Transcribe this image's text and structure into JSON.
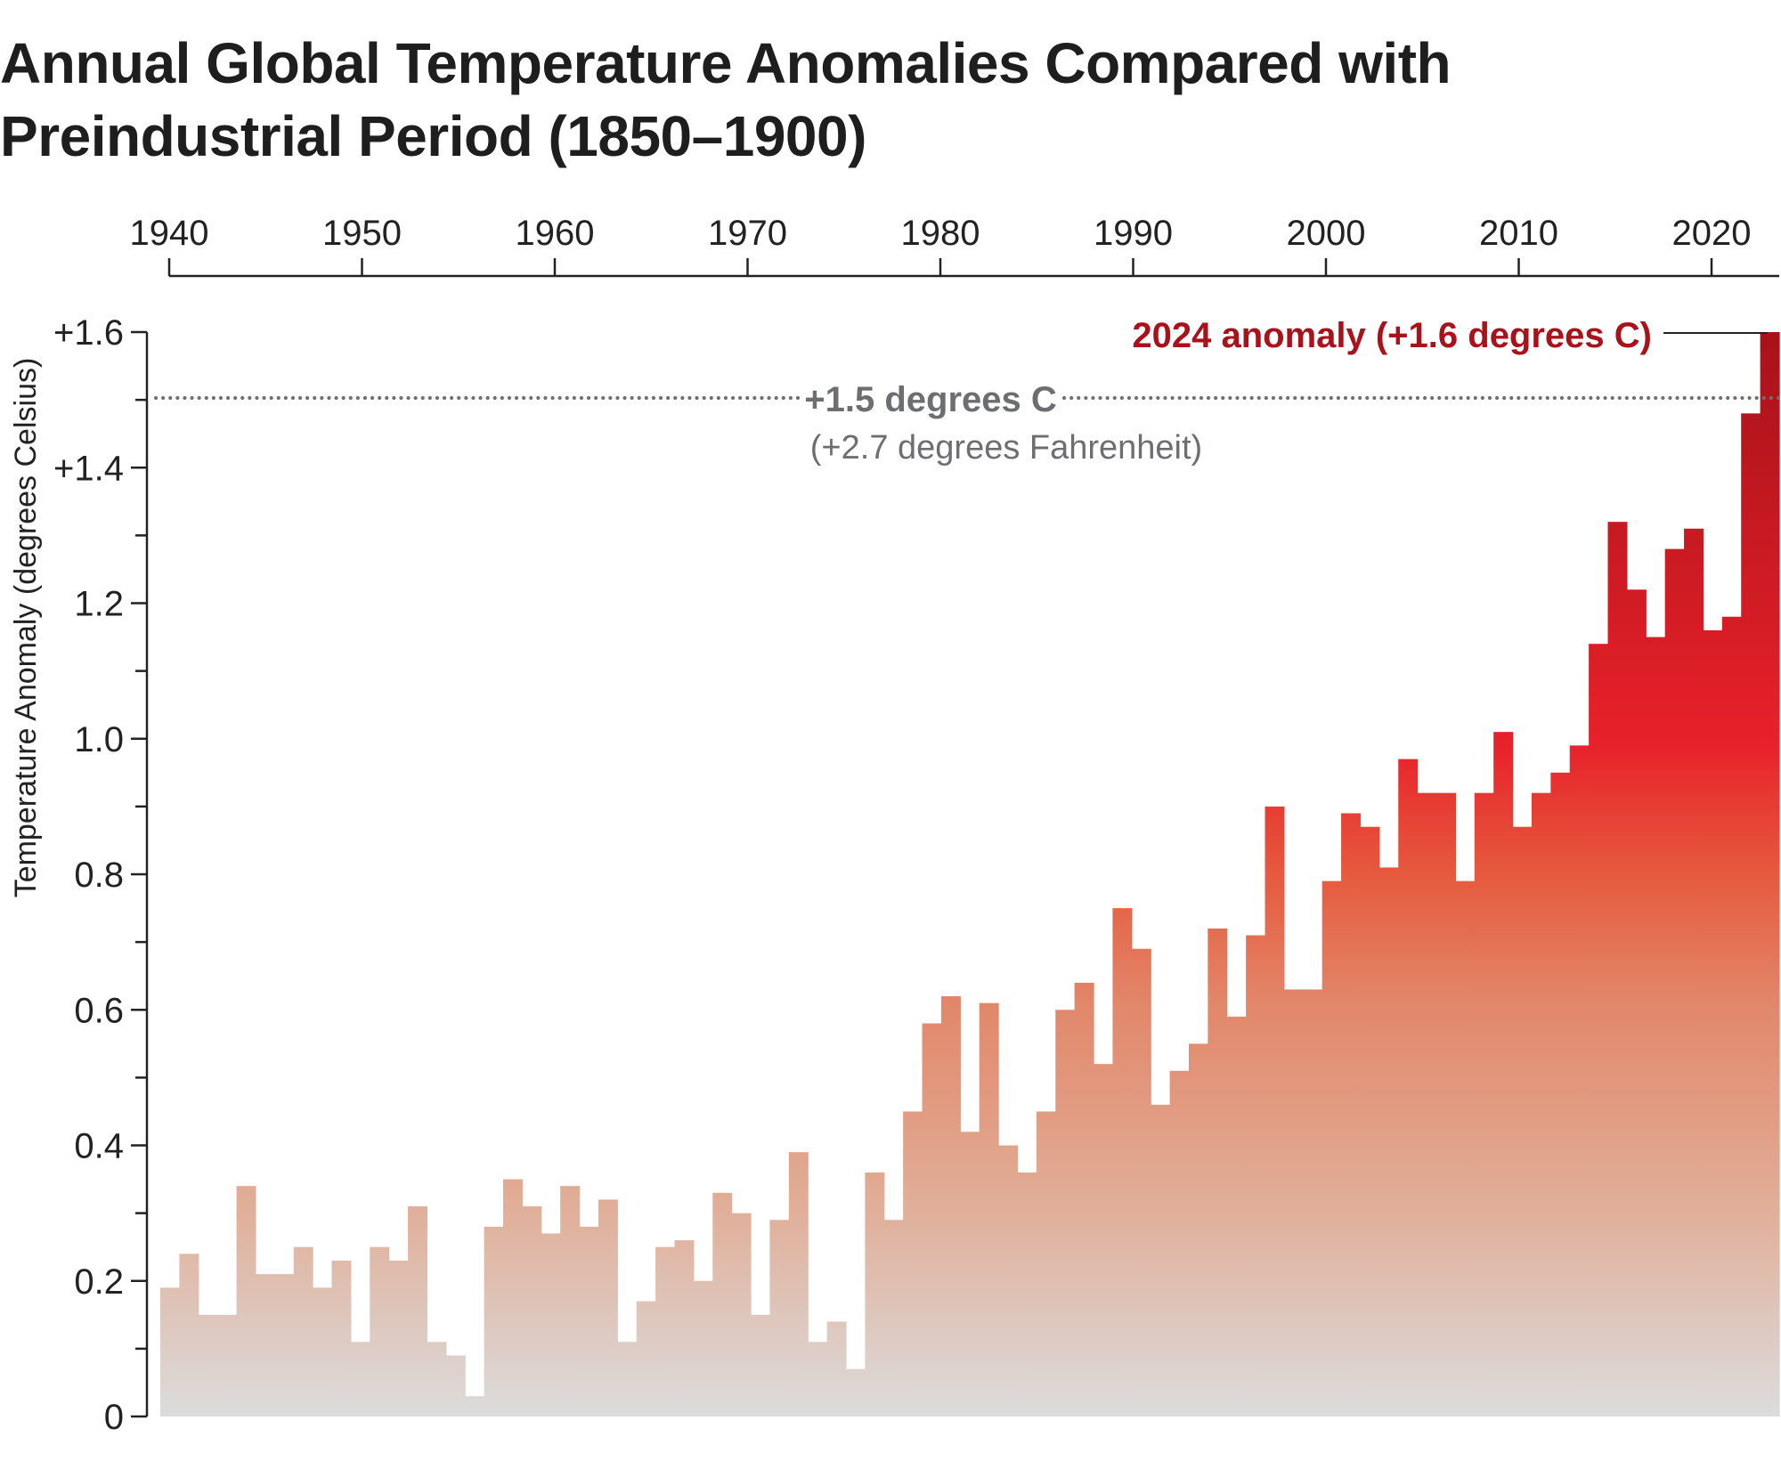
{
  "chart_data": {
    "type": "bar",
    "title": "Annual Global Temperature Anomalies Compared with Preindustrial Period (1850–1900)",
    "ylabel": "Temperature Anomaly (degrees Celsius)",
    "xlabel": "",
    "xlim": [
      1940,
      2024
    ],
    "ylim": [
      0,
      1.6
    ],
    "x_ticks": [
      "1940",
      "1950",
      "1960",
      "1970",
      "1980",
      "1990",
      "2000",
      "2010",
      "2020"
    ],
    "y_ticks": [
      {
        "value": 0,
        "label": "0"
      },
      {
        "value": 0.2,
        "label": "0.2"
      },
      {
        "value": 0.4,
        "label": "0.4"
      },
      {
        "value": 0.6,
        "label": "0.6"
      },
      {
        "value": 0.8,
        "label": "0.8"
      },
      {
        "value": 1.0,
        "label": "1.0"
      },
      {
        "value": 1.2,
        "label": "1.2"
      },
      {
        "value": 1.4,
        "label": "+1.4"
      },
      {
        "value": 1.6,
        "label": "+1.6"
      }
    ],
    "grid": false,
    "x_axis_position": "top",
    "years": [
      1940,
      1941,
      1942,
      1943,
      1944,
      1945,
      1946,
      1947,
      1948,
      1949,
      1950,
      1951,
      1952,
      1953,
      1954,
      1955,
      1956,
      1957,
      1958,
      1959,
      1960,
      1961,
      1962,
      1963,
      1964,
      1965,
      1966,
      1967,
      1968,
      1969,
      1970,
      1971,
      1972,
      1973,
      1974,
      1975,
      1976,
      1977,
      1978,
      1979,
      1980,
      1981,
      1982,
      1983,
      1984,
      1985,
      1986,
      1987,
      1988,
      1989,
      1990,
      1991,
      1992,
      1993,
      1994,
      1995,
      1996,
      1997,
      1998,
      1999,
      2000,
      2001,
      2002,
      2003,
      2004,
      2005,
      2006,
      2007,
      2008,
      2009,
      2010,
      2011,
      2012,
      2013,
      2014,
      2015,
      2016,
      2017,
      2018,
      2019,
      2020,
      2021,
      2022,
      2023,
      2024
    ],
    "values": [
      0.19,
      0.24,
      0.15,
      0.15,
      0.34,
      0.21,
      0.21,
      0.25,
      0.19,
      0.23,
      0.11,
      0.25,
      0.23,
      0.31,
      0.11,
      0.09,
      0.03,
      0.28,
      0.35,
      0.31,
      0.27,
      0.34,
      0.28,
      0.32,
      0.11,
      0.17,
      0.25,
      0.26,
      0.2,
      0.33,
      0.3,
      0.15,
      0.29,
      0.39,
      0.11,
      0.14,
      0.07,
      0.36,
      0.29,
      0.45,
      0.58,
      0.62,
      0.42,
      0.61,
      0.4,
      0.36,
      0.45,
      0.6,
      0.64,
      0.52,
      0.75,
      0.69,
      0.46,
      0.51,
      0.55,
      0.72,
      0.59,
      0.71,
      0.9,
      0.63,
      0.63,
      0.79,
      0.89,
      0.87,
      0.81,
      0.97,
      0.92,
      0.92,
      0.79,
      0.92,
      1.01,
      0.87,
      0.92,
      0.95,
      0.99,
      1.14,
      1.32,
      1.22,
      1.15,
      1.28,
      1.31,
      1.16,
      1.18,
      1.48,
      1.6
    ],
    "reference_line": {
      "value": 1.5,
      "label": "+1.5 degrees C",
      "sublabel": "(+2.7 degrees Fahrenheit)",
      "style": "dotted",
      "color": "#6d6e71"
    },
    "annotation": {
      "label": "2024 anomaly (+1.6 degrees C)",
      "color": "#a8121a"
    },
    "colors": {
      "low": "#dcdcdc",
      "mid": "#e09a80",
      "high": "#e8202a",
      "top": "#a8121a"
    }
  }
}
